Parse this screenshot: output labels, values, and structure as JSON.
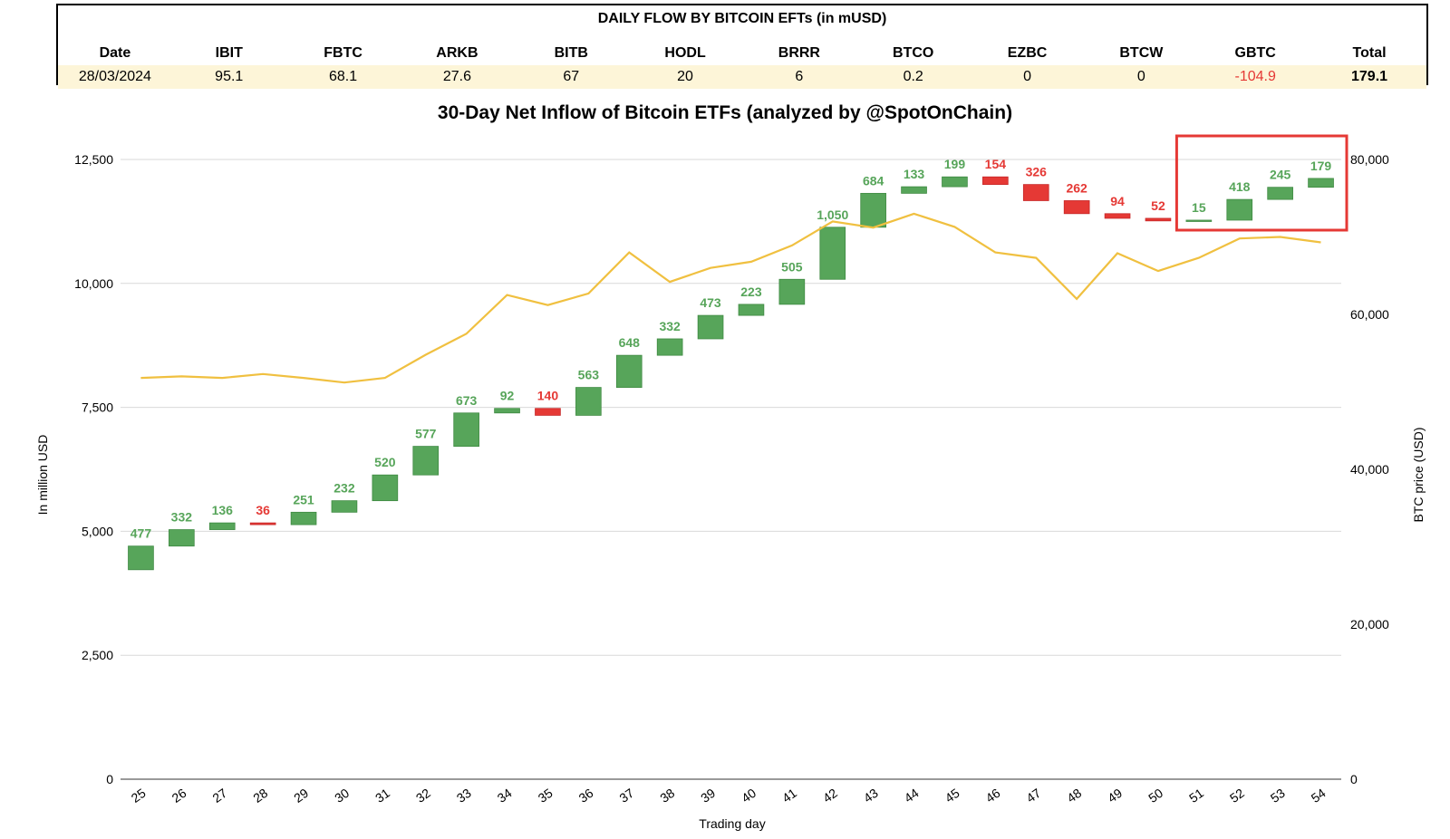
{
  "table": {
    "title": "DAILY FLOW BY BITCOIN EFTs (in mUSD)",
    "headers": [
      "Date",
      "IBIT",
      "FBTC",
      "ARKB",
      "BITB",
      "HODL",
      "BRRR",
      "BTCO",
      "EZBC",
      "BTCW",
      "GBTC",
      "Total"
    ],
    "values": [
      "28/03/2024",
      "95.1",
      "68.1",
      "27.6",
      "67",
      "20",
      "6",
      "0.2",
      "0",
      "0",
      "-104.9",
      "179.1"
    ]
  },
  "colors": {
    "inflow": "#57a55a",
    "outflow": "#e53935",
    "price_line": "#f0c040",
    "highlight_box": "#e53935",
    "gridline": "#d9d9d9"
  },
  "chart_data": {
    "type": "bar",
    "subtype": "waterfall-with-line",
    "title": "30-Day Net Inflow of Bitcoin ETFs (analyzed by @SpotOnChain)",
    "xlabel": "Trading day",
    "ylabel": "In million USD",
    "y2label": "BTC price (USD)",
    "ylim": [
      0,
      12500
    ],
    "y2lim": [
      0,
      80000
    ],
    "yticks": [
      "0",
      "2,500",
      "5,000",
      "7,500",
      "10,000",
      "12,500"
    ],
    "y2ticks": [
      "0",
      "20,000",
      "40,000",
      "60,000",
      "80,000"
    ],
    "grid": true,
    "categories": [
      "25",
      "26",
      "27",
      "28",
      "29",
      "30",
      "31",
      "32",
      "33",
      "34",
      "35",
      "36",
      "37",
      "38",
      "39",
      "40",
      "41",
      "42",
      "43",
      "44",
      "45",
      "46",
      "47",
      "48",
      "49",
      "50",
      "51",
      "52",
      "53",
      "54"
    ],
    "flow_labels": [
      "477",
      "332",
      "136",
      "36",
      "251",
      "232",
      "520",
      "577",
      "673",
      "92",
      "140",
      "563",
      "648",
      "332",
      "473",
      "223",
      "505",
      "1,050",
      "684",
      "133",
      "199",
      "154",
      "326",
      "262",
      "94",
      "52",
      "15",
      "418",
      "245",
      "179"
    ],
    "flows": [
      477,
      332,
      136,
      -36,
      251,
      232,
      520,
      577,
      673,
      92,
      -140,
      563,
      648,
      332,
      473,
      223,
      505,
      1050,
      684,
      133,
      199,
      -154,
      -326,
      -262,
      -94,
      -52,
      15,
      418,
      245,
      179
    ],
    "cumulative_start": 4225,
    "btc_price": [
      51800,
      52000,
      51800,
      52300,
      51800,
      51200,
      51800,
      54800,
      57500,
      62500,
      61200,
      62700,
      68000,
      64200,
      66000,
      66800,
      68900,
      72000,
      71200,
      73000,
      71300,
      68000,
      67300,
      62000,
      67900,
      65600,
      67300,
      69800,
      70000,
      69300
    ],
    "highlight_range": [
      "51",
      "54"
    ]
  }
}
